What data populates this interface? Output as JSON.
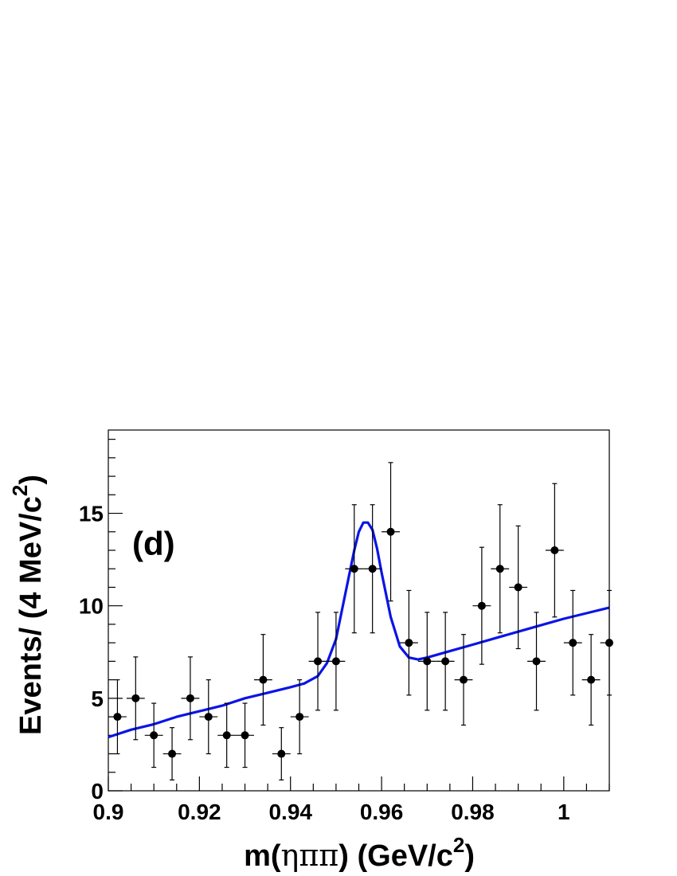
{
  "chart_data": {
    "type": "scatter",
    "panel_label": "(d)",
    "xlabel": {
      "pre": "m(",
      "greek": "ηππ",
      "post": ") (GeV/c",
      "sup": "2",
      "close": ")"
    },
    "ylabel": {
      "pre": "Events/ (4 MeV/c",
      "sup": "2",
      "close": ")"
    },
    "xlim": [
      0.9,
      1.01
    ],
    "ylim": [
      0,
      19.5
    ],
    "x_ticks": [
      0.9,
      0.92,
      0.94,
      0.96,
      0.98,
      1
    ],
    "x_tick_labels": [
      "0.9",
      "0.92",
      "0.94",
      "0.96",
      "0.98",
      "1"
    ],
    "y_ticks": [
      0,
      5,
      10,
      15
    ],
    "y_tick_labels": [
      "0",
      "5",
      "10",
      "15"
    ],
    "bin_half_width": 0.002,
    "series": [
      {
        "type": "points",
        "x": [
          0.902,
          0.906,
          0.91,
          0.914,
          0.918,
          0.922,
          0.926,
          0.93,
          0.934,
          0.938,
          0.942,
          0.946,
          0.95,
          0.954,
          0.958,
          0.962,
          0.966,
          0.97,
          0.974,
          0.978,
          0.982,
          0.986,
          0.99,
          0.994,
          0.998,
          1.002,
          1.006,
          1.01
        ],
        "y": [
          4,
          5,
          3,
          2,
          5,
          4,
          3,
          3,
          6,
          2,
          4,
          7,
          7,
          12,
          12,
          14,
          8,
          7,
          7,
          6,
          10,
          12,
          11,
          7,
          13,
          8,
          6,
          8
        ],
        "color": "#000000"
      },
      {
        "type": "fit",
        "color": "#0a14e6",
        "x": [
          0.9,
          0.905,
          0.91,
          0.915,
          0.92,
          0.925,
          0.93,
          0.935,
          0.94,
          0.943,
          0.946,
          0.948,
          0.95,
          0.952,
          0.954,
          0.955,
          0.956,
          0.957,
          0.958,
          0.959,
          0.96,
          0.962,
          0.964,
          0.966,
          0.968,
          0.97,
          0.975,
          0.98,
          0.985,
          0.99,
          0.995,
          1.0,
          1.005,
          1.01
        ],
        "y": [
          2.9,
          3.3,
          3.6,
          4.0,
          4.3,
          4.6,
          5.0,
          5.3,
          5.6,
          5.8,
          6.2,
          6.9,
          8.2,
          10.6,
          13.0,
          14.0,
          14.5,
          14.5,
          14.1,
          13.1,
          11.8,
          9.4,
          7.8,
          7.2,
          7.1,
          7.2,
          7.55,
          7.9,
          8.25,
          8.6,
          8.95,
          9.3,
          9.6,
          9.9
        ]
      }
    ]
  }
}
